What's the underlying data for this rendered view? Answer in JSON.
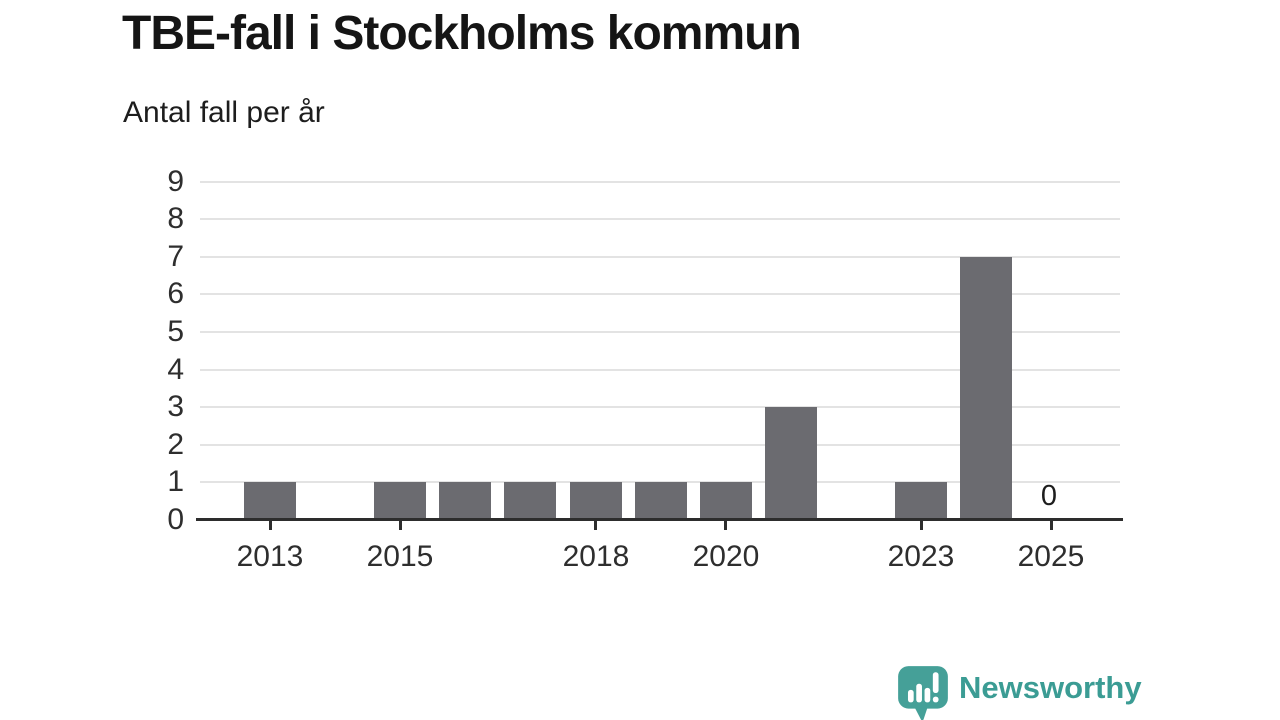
{
  "chart_data": {
    "type": "bar",
    "title": "TBE-fall i Stockholms kommun",
    "subtitle": "Antal fall per år",
    "x": [
      2013,
      2014,
      2015,
      2016,
      2017,
      2018,
      2019,
      2020,
      2021,
      2022,
      2023,
      2024,
      2025
    ],
    "values": [
      1,
      0,
      1,
      1,
      1,
      1,
      1,
      1,
      3,
      0,
      1,
      7,
      0
    ],
    "ylim": [
      0,
      9
    ],
    "yticks": [
      0,
      1,
      2,
      3,
      4,
      5,
      6,
      7,
      8,
      9
    ],
    "xtick_labels": [
      "2013",
      "2015",
      "2018",
      "2020",
      "2023",
      "2025"
    ],
    "bar_value_labels": [
      {
        "x": 2025,
        "text": "0"
      }
    ],
    "grid": "horizontal",
    "legend": "none",
    "colors": {
      "bar": "#6b6b70",
      "grid": "#e3e3e3",
      "axis": "#2d2d2d",
      "tick_text": "#2e2e2e",
      "title_text": "#151515"
    }
  },
  "branding": {
    "logo_text": "Newsworthy",
    "logo_color": "#3b9c94",
    "logo_icon": "speech-bubble-bar-chart-exclamation"
  }
}
